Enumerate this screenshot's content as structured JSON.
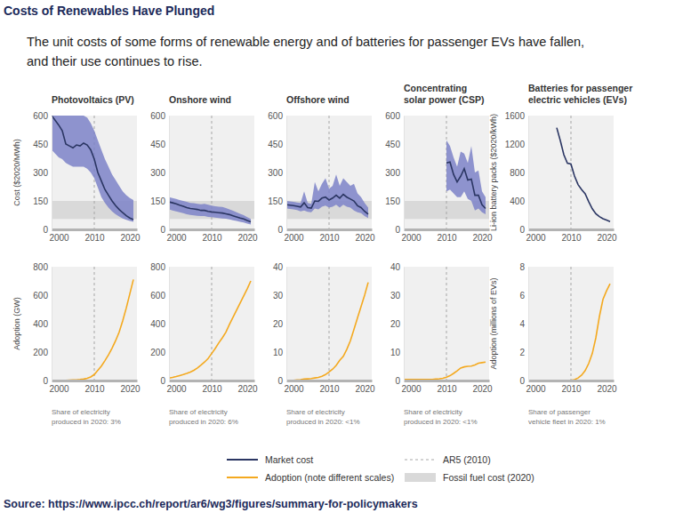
{
  "header": {
    "title": "Costs of Renewables Have Plunged",
    "subtitle": [
      "The unit costs of some forms of renewable energy and of batteries for passenger EVs have fallen,",
      "and their use continues to rise."
    ]
  },
  "source": "Source: https://www.ipcc.ch/report/ar6/wg3/figures/summary-for-policymakers",
  "legend": [
    {
      "label": "Market cost",
      "color": "#2b3663",
      "type": "line",
      "line_style": "solid"
    },
    {
      "label": "Adoption (note different scales)",
      "color": "#f4a91f",
      "type": "line",
      "line_style": "solid"
    },
    {
      "label": "AR5 (2010)",
      "color": "#a6a6a6",
      "type": "line",
      "line_style": "dashed"
    },
    {
      "label": "Fossil fuel cost (2020)",
      "color": "#d9d9d9",
      "type": "area"
    }
  ],
  "chart_data": [
    {
      "type": "line",
      "title": [
        "Photovoltaics (PV)"
      ],
      "y_label": "Cost ($2020/MWh)",
      "x": [
        1998,
        1999,
        2000,
        2001,
        2002,
        2003,
        2004,
        2005,
        2006,
        2007,
        2008,
        2009,
        2010,
        2011,
        2012,
        2013,
        2014,
        2015,
        2016,
        2017,
        2018,
        2019,
        2020,
        2021
      ],
      "xlim": [
        1998,
        2022
      ],
      "xticks": [
        2000,
        2010,
        2020
      ],
      "ylim": [
        0,
        600
      ],
      "yticks": [
        0,
        150,
        300,
        450,
        600
      ],
      "ar5": 2010,
      "fossil_fuel_cost": [
        55,
        150
      ],
      "series": [
        {
          "color": "#2b3663",
          "values": [
            600,
            575,
            550,
            520,
            450,
            440,
            430,
            445,
            440,
            455,
            445,
            420,
            370,
            300,
            255,
            210,
            180,
            150,
            125,
            105,
            88,
            72,
            60,
            52
          ],
          "low": [
            420,
            400,
            380,
            370,
            350,
            340,
            330,
            330,
            330,
            330,
            320,
            300,
            270,
            220,
            170,
            140,
            115,
            95,
            80,
            68,
            58,
            50,
            44,
            40
          ],
          "high": [
            600,
            600,
            600,
            600,
            600,
            600,
            600,
            600,
            600,
            600,
            590,
            560,
            520,
            470,
            420,
            370,
            330,
            290,
            260,
            230,
            200,
            180,
            165,
            155
          ]
        }
      ]
    },
    {
      "type": "line",
      "title": [
        "Onshore wind"
      ],
      "x": [
        1998,
        1999,
        2000,
        2001,
        2002,
        2003,
        2004,
        2005,
        2006,
        2007,
        2008,
        2009,
        2010,
        2011,
        2012,
        2013,
        2014,
        2015,
        2016,
        2017,
        2018,
        2019,
        2020,
        2021
      ],
      "xlim": [
        1998,
        2022
      ],
      "xticks": [
        2000,
        2010,
        2020
      ],
      "ylim": [
        0,
        600
      ],
      "yticks": [
        0,
        150,
        300,
        450,
        600
      ],
      "ar5": 2010,
      "fossil_fuel_cost": [
        55,
        150
      ],
      "series": [
        {
          "color": "#2b3663",
          "values": [
            145,
            140,
            135,
            128,
            122,
            115,
            110,
            108,
            105,
            100,
            100,
            95,
            92,
            90,
            88,
            86,
            82,
            78,
            72,
            66,
            60,
            55,
            47,
            40
          ],
          "low": [
            105,
            100,
            95,
            90,
            85,
            80,
            76,
            74,
            72,
            70,
            70,
            66,
            64,
            62,
            60,
            58,
            56,
            53,
            48,
            44,
            40,
            36,
            30,
            26
          ],
          "high": [
            170,
            165,
            160,
            155,
            150,
            145,
            140,
            138,
            135,
            132,
            135,
            130,
            125,
            122,
            120,
            118,
            112,
            105,
            98,
            90,
            82,
            75,
            65,
            55
          ]
        }
      ]
    },
    {
      "type": "line",
      "title": [
        "Offshore wind"
      ],
      "x": [
        1998,
        1999,
        2000,
        2001,
        2002,
        2003,
        2004,
        2005,
        2006,
        2007,
        2008,
        2009,
        2010,
        2011,
        2012,
        2013,
        2014,
        2015,
        2016,
        2017,
        2018,
        2019,
        2020,
        2021
      ],
      "xlim": [
        1998,
        2022
      ],
      "xticks": [
        2000,
        2010,
        2020
      ],
      "ylim": [
        0,
        600
      ],
      "yticks": [
        0,
        150,
        300,
        450,
        600
      ],
      "ar5": 2010,
      "fossil_fuel_cost": [
        55,
        150
      ],
      "series": [
        {
          "color": "#2b3663",
          "values": [
            130,
            128,
            125,
            122,
            118,
            140,
            115,
            112,
            150,
            148,
            165,
            170,
            155,
            165,
            180,
            165,
            185,
            170,
            160,
            150,
            125,
            115,
            95,
            80
          ],
          "low": [
            110,
            108,
            105,
            102,
            95,
            100,
            92,
            90,
            110,
            105,
            120,
            125,
            115,
            120,
            130,
            115,
            130,
            120,
            115,
            100,
            90,
            85,
            70,
            60
          ],
          "high": [
            150,
            148,
            145,
            142,
            140,
            200,
            140,
            135,
            250,
            200,
            240,
            270,
            215,
            230,
            290,
            230,
            270,
            250,
            230,
            240,
            190,
            170,
            140,
            115
          ]
        }
      ]
    },
    {
      "type": "line",
      "title": [
        "Concentrating",
        "solar power (CSP)"
      ],
      "x": [
        1998,
        1999,
        2000,
        2001,
        2002,
        2003,
        2004,
        2005,
        2006,
        2007,
        2008,
        2009,
        2010,
        2011,
        2012,
        2013,
        2014,
        2015,
        2016,
        2017,
        2018,
        2019,
        2020,
        2021
      ],
      "xlim": [
        1998,
        2022
      ],
      "xticks": [
        2000,
        2010,
        2020
      ],
      "ylim": [
        0,
        600
      ],
      "yticks": [
        0,
        150,
        300,
        450,
        600
      ],
      "ar5": 2010,
      "fossil_fuel_cost": [
        55,
        150
      ],
      "series": [
        {
          "color": "#2b3663",
          "values": [
            null,
            null,
            null,
            null,
            null,
            null,
            null,
            null,
            null,
            null,
            null,
            null,
            350,
            355,
            290,
            250,
            280,
            320,
            260,
            265,
            180,
            180,
            130,
            110
          ],
          "low": [
            null,
            null,
            null,
            null,
            null,
            null,
            null,
            null,
            null,
            null,
            null,
            null,
            200,
            210,
            190,
            170,
            170,
            200,
            160,
            150,
            100,
            110,
            90,
            80
          ],
          "high": [
            null,
            null,
            null,
            null,
            null,
            null,
            null,
            null,
            null,
            null,
            null,
            null,
            470,
            440,
            380,
            330,
            410,
            400,
            350,
            440,
            300,
            310,
            200,
            170
          ]
        }
      ]
    },
    {
      "type": "line",
      "title": [
        "Batteries for passenger",
        "electric vehicles (EVs)"
      ],
      "y_label": "Li-ion battery packs ($2020/kWh)",
      "x": [
        1998,
        1999,
        2000,
        2001,
        2002,
        2003,
        2004,
        2005,
        2006,
        2007,
        2008,
        2009,
        2010,
        2011,
        2012,
        2013,
        2014,
        2015,
        2016,
        2017,
        2018,
        2019,
        2020,
        2021
      ],
      "xlim": [
        1998,
        2022
      ],
      "xticks": [
        2000,
        2010,
        2020
      ],
      "ylim": [
        0,
        1600
      ],
      "yticks": [
        0,
        400,
        800,
        1200,
        1600
      ],
      "ar5": 2010,
      "series": [
        {
          "color": "#2b3663",
          "values": [
            null,
            null,
            null,
            null,
            null,
            null,
            null,
            null,
            1430,
            1250,
            1050,
            930,
            920,
            750,
            630,
            560,
            500,
            390,
            290,
            220,
            180,
            150,
            130,
            110
          ]
        }
      ]
    },
    {
      "type": "line",
      "y_label": "Adoption (GW)",
      "note": [
        "Share of electricity",
        "produced in 2020: 3%"
      ],
      "x": [
        1998,
        1999,
        2000,
        2001,
        2002,
        2003,
        2004,
        2005,
        2006,
        2007,
        2008,
        2009,
        2010,
        2011,
        2012,
        2013,
        2014,
        2015,
        2016,
        2017,
        2018,
        2019,
        2020,
        2021
      ],
      "xlim": [
        1998,
        2022
      ],
      "xticks": [
        2000,
        2010,
        2020
      ],
      "ylim": [
        0,
        800
      ],
      "yticks": [
        0,
        200,
        400,
        600,
        800
      ],
      "ar5": 2010,
      "series": [
        {
          "color": "#f4a91f",
          "values": [
            0.5,
            0.8,
            1,
            1.5,
            2,
            3,
            4,
            5,
            7,
            10,
            16,
            25,
            42,
            72,
            102,
            140,
            180,
            228,
            280,
            340,
            420,
            510,
            610,
            710
          ]
        }
      ]
    },
    {
      "type": "line",
      "note": [
        "Share of electricity",
        "produced in 2020: 6%"
      ],
      "x": [
        1998,
        1999,
        2000,
        2001,
        2002,
        2003,
        2004,
        2005,
        2006,
        2007,
        2008,
        2009,
        2010,
        2011,
        2012,
        2013,
        2014,
        2015,
        2016,
        2017,
        2018,
        2019,
        2020,
        2021
      ],
      "xlim": [
        1998,
        2022
      ],
      "xticks": [
        2000,
        2010,
        2020
      ],
      "ylim": [
        0,
        800
      ],
      "yticks": [
        0,
        200,
        400,
        600,
        800
      ],
      "ar5": 2010,
      "series": [
        {
          "color": "#f4a91f",
          "values": [
            17,
            22,
            28,
            35,
            42,
            50,
            60,
            72,
            88,
            108,
            130,
            155,
            190,
            225,
            265,
            300,
            340,
            395,
            445,
            495,
            545,
            595,
            645,
            700
          ]
        }
      ]
    },
    {
      "type": "line",
      "note": [
        "Share of electricity",
        "produced in 2020: <1%"
      ],
      "x": [
        1998,
        1999,
        2000,
        2001,
        2002,
        2003,
        2004,
        2005,
        2006,
        2007,
        2008,
        2009,
        2010,
        2011,
        2012,
        2013,
        2014,
        2015,
        2016,
        2017,
        2018,
        2019,
        2020,
        2021
      ],
      "xlim": [
        1998,
        2022
      ],
      "xticks": [
        2000,
        2010,
        2020
      ],
      "ylim": [
        0,
        40
      ],
      "yticks": [
        0,
        10,
        20,
        30,
        40
      ],
      "ar5": 2010,
      "series": [
        {
          "color": "#f4a91f",
          "values": [
            0.05,
            0.1,
            0.1,
            0.2,
            0.3,
            0.5,
            0.6,
            0.7,
            0.9,
            1.1,
            1.5,
            2.1,
            3,
            4,
            5.3,
            7.1,
            8.5,
            11,
            14,
            18,
            22,
            26,
            30,
            34.5
          ]
        }
      ]
    },
    {
      "type": "line",
      "note": [
        "Share of electricity",
        "produced in 2020: <1%"
      ],
      "x": [
        1998,
        1999,
        2000,
        2001,
        2002,
        2003,
        2004,
        2005,
        2006,
        2007,
        2008,
        2009,
        2010,
        2011,
        2012,
        2013,
        2014,
        2015,
        2016,
        2017,
        2018,
        2019,
        2020,
        2021
      ],
      "xlim": [
        1998,
        2022
      ],
      "xticks": [
        2000,
        2010,
        2020
      ],
      "ylim": [
        0,
        40
      ],
      "yticks": [
        0,
        10,
        20,
        30,
        40
      ],
      "ar5": 2010,
      "series": [
        {
          "color": "#f4a91f",
          "values": [
            0.4,
            0.4,
            0.4,
            0.4,
            0.4,
            0.4,
            0.4,
            0.4,
            0.4,
            0.5,
            0.6,
            0.8,
            1.2,
            1.7,
            2.5,
            3.4,
            4.4,
            4.8,
            5.0,
            5.1,
            5.5,
            6.1,
            6.3,
            6.5
          ]
        }
      ]
    },
    {
      "type": "line",
      "y_label": "Adoption (millions of EVs)",
      "note": [
        "Share of passenger",
        "vehicle fleet in 2020: 1%"
      ],
      "x": [
        1998,
        1999,
        2000,
        2001,
        2002,
        2003,
        2004,
        2005,
        2006,
        2007,
        2008,
        2009,
        2010,
        2011,
        2012,
        2013,
        2014,
        2015,
        2016,
        2017,
        2018,
        2019,
        2020,
        2021
      ],
      "xlim": [
        1998,
        2022
      ],
      "xticks": [
        2000,
        2010,
        2020
      ],
      "ylim": [
        0,
        8
      ],
      "yticks": [
        0,
        2,
        4,
        6,
        8
      ],
      "ar5": 2010,
      "series": [
        {
          "color": "#f4a91f",
          "values": [
            null,
            null,
            null,
            null,
            null,
            null,
            null,
            0,
            0,
            0,
            0,
            0,
            0.02,
            0.06,
            0.18,
            0.38,
            0.7,
            1.2,
            1.9,
            3.0,
            4.5,
            5.7,
            6.3,
            6.8
          ]
        }
      ]
    }
  ]
}
